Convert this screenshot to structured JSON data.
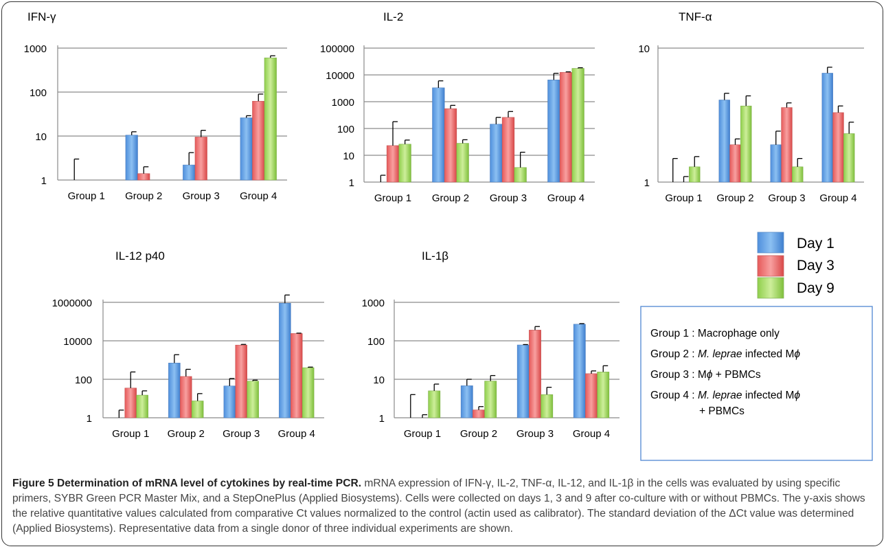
{
  "chart_data": [
    {
      "type": "bar",
      "title": "IFN-γ",
      "scale": "log",
      "ylim": [
        1,
        1000
      ],
      "yticks": [
        "1",
        "10",
        "100",
        "1000"
      ],
      "categories": [
        "Group 1",
        "Group 2",
        "Group 3",
        "Group 4"
      ],
      "series": [
        {
          "name": "Day 1",
          "values": [
            1,
            10.5,
            2.2,
            26
          ],
          "errors": [
            3,
            12.5,
            4.2,
            29
          ]
        },
        {
          "name": "Day 3",
          "values": [
            1,
            1.4,
            9.5,
            62
          ],
          "errors": [
            null,
            2.0,
            13.5,
            90
          ]
        },
        {
          "name": "Day 9",
          "values": [
            1,
            1,
            1,
            600
          ],
          "errors": [
            null,
            null,
            null,
            670
          ]
        }
      ]
    },
    {
      "type": "bar",
      "title": "IL-2",
      "scale": "log",
      "ylim": [
        1,
        100000
      ],
      "yticks": [
        "1",
        "10",
        "100",
        "1000",
        "10000",
        "100000"
      ],
      "categories": [
        "Group 1",
        "Group 2",
        "Group 3",
        "Group 4"
      ],
      "series": [
        {
          "name": "Day 1",
          "values": [
            1,
            3300,
            145,
            6500
          ],
          "errors": [
            1.8,
            6000,
            260,
            11500
          ]
        },
        {
          "name": "Day 3",
          "values": [
            23,
            550,
            260,
            12500
          ],
          "errors": [
            180,
            730,
            430,
            13000
          ]
        },
        {
          "name": "Day 9",
          "values": [
            26,
            28,
            3.5,
            17500
          ],
          "errors": [
            37,
            38,
            13,
            18500
          ]
        }
      ]
    },
    {
      "type": "bar",
      "title": "TNF-α",
      "scale": "log",
      "ylim": [
        1,
        10
      ],
      "yticks": [
        "1",
        "10"
      ],
      "categories": [
        "Group 1",
        "Group 2",
        "Group 3",
        "Group 4"
      ],
      "series": [
        {
          "name": "Day 1",
          "values": [
            1,
            4.1,
            1.9,
            6.5
          ],
          "errors": [
            1.5,
            4.6,
            2.4,
            7.2
          ]
        },
        {
          "name": "Day 3",
          "values": [
            1,
            1.9,
            3.6,
            3.3
          ],
          "errors": [
            1.1,
            2.1,
            3.9,
            3.7
          ]
        },
        {
          "name": "Day 9",
          "values": [
            1.3,
            3.7,
            1.3,
            2.3
          ],
          "errors": [
            1.55,
            4.4,
            1.5,
            2.8
          ]
        }
      ]
    },
    {
      "type": "bar",
      "title": "IL-12 p40",
      "scale": "log",
      "ylim": [
        1,
        1000000
      ],
      "yticks": [
        "1",
        "100",
        "10000",
        "1000000"
      ],
      "categories": [
        "Group 1",
        "Group 2",
        "Group 3",
        "Group 4"
      ],
      "series": [
        {
          "name": "Day 1",
          "values": [
            1,
            700,
            45,
            900000
          ],
          "errors": [
            2.5,
            1900,
            110,
            2400000
          ]
        },
        {
          "name": "Day 3",
          "values": [
            35,
            140,
            6000,
            24000
          ],
          "errors": [
            240,
            330,
            6500,
            25000
          ]
        },
        {
          "name": "Day 9",
          "values": [
            15,
            7.5,
            80,
            400
          ],
          "errors": [
            25,
            18,
            90,
            430
          ]
        }
      ]
    },
    {
      "type": "bar",
      "title": "IL-1β",
      "scale": "log",
      "ylim": [
        1,
        1000
      ],
      "yticks": [
        "1",
        "10",
        "100",
        "1000"
      ],
      "categories": [
        "Group 1",
        "Group 2",
        "Group 3",
        "Group 4"
      ],
      "series": [
        {
          "name": "Day 1",
          "values": [
            1,
            6.8,
            78,
            270
          ],
          "errors": [
            4,
            10,
            80,
            280
          ]
        },
        {
          "name": "Day 3",
          "values": [
            1,
            1.6,
            190,
            14
          ],
          "errors": [
            1.2,
            1.95,
            235,
            16.5
          ]
        },
        {
          "name": "Day 9",
          "values": [
            5,
            9,
            4,
            15.5
          ],
          "errors": [
            7.5,
            12.5,
            6.2,
            22.5
          ]
        }
      ]
    }
  ],
  "legend": {
    "items": [
      {
        "label": "Day 1",
        "color": "#6fa8e8"
      },
      {
        "label": "Day 3",
        "color": "#ee7777"
      },
      {
        "label": "Day 9",
        "color": "#a8dc6a"
      }
    ]
  },
  "groups_box": {
    "lines": [
      {
        "parts": [
          {
            "text": "Group 1 : Macrophage only",
            "italic": false
          }
        ]
      },
      {
        "parts": [
          {
            "text": "Group 2 : ",
            "italic": false
          },
          {
            "text": "M. leprae",
            "italic": true
          },
          {
            "text": " infected M",
            "italic": false
          },
          {
            "text": "ϕ",
            "italic": true
          }
        ]
      },
      {
        "parts": [
          {
            "text": "Group 3 : M",
            "italic": false
          },
          {
            "text": "ϕ",
            "italic": true
          },
          {
            "text": " + PBMCs",
            "italic": false
          }
        ]
      },
      {
        "parts": [
          {
            "text": "Group 4 : ",
            "italic": false
          },
          {
            "text": "M. leprae",
            "italic": true
          },
          {
            "text": " infected M",
            "italic": false
          },
          {
            "text": "ϕ",
            "italic": true
          }
        ]
      },
      {
        "parts": [
          {
            "text": "+ PBMCs",
            "italic": false
          }
        ]
      }
    ]
  },
  "caption": {
    "label": "Figure 5 Determination of mRNA level of cytokines by real-time PCR.",
    "text": " mRNA expression of IFN-γ, IL-2, TNF-α, IL-12, and IL-1β in the cells was evaluated by using specific primers, SYBR Green PCR Master Mix, and a StepOnePlus (Applied Biosystems). Cells were collected on days 1, 3 and 9 after co-culture with or without PBMCs. The y-axis shows the relative quantitative values calculated from comparative Ct values normalized to the control (actin used as calibrator). The standard deviation of the ΔCt value was determined (Applied Biosystems). Representative data from a single donor of three individual experiments are shown."
  }
}
